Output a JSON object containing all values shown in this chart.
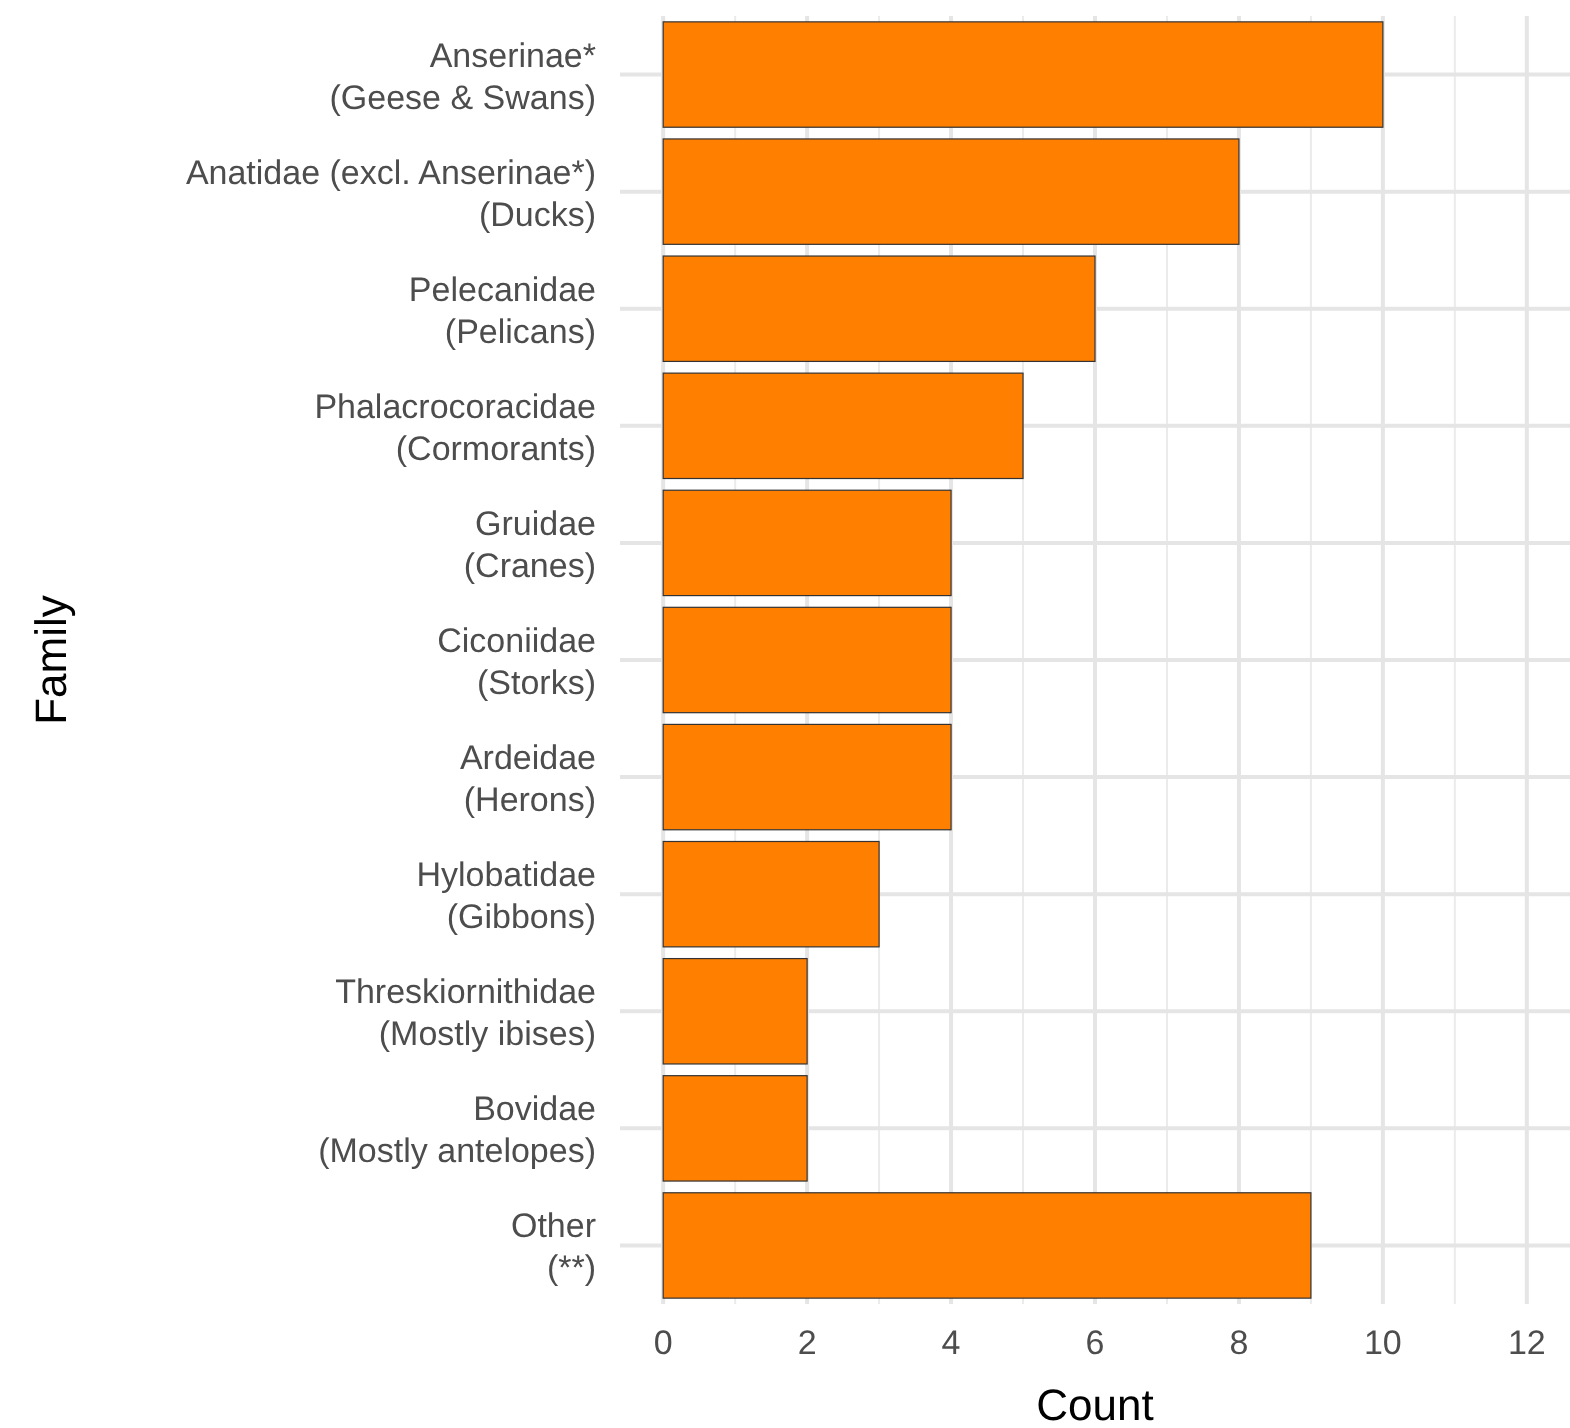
{
  "chart_data": {
    "type": "bar",
    "orientation": "horizontal",
    "xlabel": "Count",
    "ylabel": "Family",
    "categories": [
      "Anserinae*\n(Geese & Swans)",
      "Anatidae (excl. Anserinae*)\n(Ducks)",
      "Pelecanidae\n(Pelicans)",
      "Phalacrocoracidae\n(Cormorants)",
      "Gruidae\n(Cranes)",
      "Ciconiidae\n(Storks)",
      "Ardeidae\n(Herons)",
      "Hylobatidae\n(Gibbons)",
      "Threskiornithidae\n(Mostly ibises)",
      "Bovidae\n(Mostly antelopes)",
      "Other\n(**)"
    ],
    "values": [
      10,
      8,
      6,
      5,
      4,
      4,
      4,
      3,
      2,
      2,
      9
    ],
    "color": "#ff7f00",
    "xlim": [
      -0.6,
      12.6
    ],
    "xticks": [
      0,
      2,
      4,
      6,
      8,
      10,
      12
    ],
    "grid": true
  }
}
